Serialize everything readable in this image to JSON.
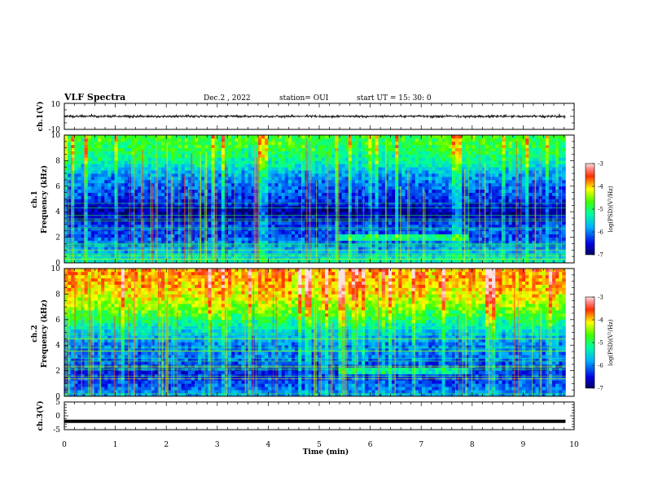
{
  "header": {
    "title": "VLF Spectra",
    "date": "Dec.2 , 2022",
    "station": "station= OUI",
    "start": "start UT = 15: 30: 0"
  },
  "colors": {
    "background": "#ffffff",
    "frame": "#000000",
    "spectrogram_low": "#0a0a5a",
    "spectrogram_high": "#d01010",
    "trace": "#000000"
  },
  "chart_data": [
    {
      "type": "line",
      "panel": "ch1-waveform",
      "ylabel": "ch.1(V)",
      "ylim": [
        -10,
        10
      ],
      "ytick_labels": [
        "10",
        "-10"
      ],
      "series": [
        {
          "name": "ch.1",
          "baseline": 0,
          "amplitude_range": [
            -1.5,
            1.5
          ]
        }
      ]
    },
    {
      "type": "heatmap",
      "panel": "ch1-spectrogram",
      "ylabel": "Frequency (kHz)",
      "ylabel_prefix": "ch.1",
      "ylim": [
        0,
        10
      ],
      "yticks": [
        0,
        2,
        4,
        6,
        8,
        10
      ],
      "ytick_labels": [
        "0",
        "2",
        "4",
        "6",
        "8",
        "10"
      ],
      "colorbar": {
        "label": "log(PSD)(V²/Hz)",
        "range": [
          -7,
          -3
        ],
        "ticks": [
          -3,
          -4,
          -5,
          -6,
          -7
        ],
        "tick_labels": [
          "-3",
          "-4",
          "-5",
          "-6",
          "-7"
        ]
      },
      "level_profile": [
        {
          "f": 0.0,
          "v": -5.3
        },
        {
          "f": 1.0,
          "v": -5.8
        },
        {
          "f": 2.0,
          "v": -6.2
        },
        {
          "f": 3.0,
          "v": -6.3
        },
        {
          "f": 4.0,
          "v": -6.8
        },
        {
          "f": 5.0,
          "v": -6.3
        },
        {
          "f": 6.0,
          "v": -6.1
        },
        {
          "f": 7.0,
          "v": -5.8
        },
        {
          "f": 8.0,
          "v": -5.2
        },
        {
          "f": 9.0,
          "v": -4.9
        },
        {
          "f": 10.0,
          "v": -4.8
        }
      ],
      "features": {
        "tone_band_khz": [
          1.7,
          2.2
        ],
        "tone_band_time_min": [
          5.4,
          7.9
        ]
      }
    },
    {
      "type": "heatmap",
      "panel": "ch2-spectrogram",
      "ylabel": "Frequency (kHz)",
      "ylabel_prefix": "ch.2",
      "ylim": [
        0,
        10
      ],
      "yticks": [
        0,
        2,
        4,
        6,
        8,
        10
      ],
      "ytick_labels": [
        "0",
        "2",
        "4",
        "6",
        "8",
        "10"
      ],
      "colorbar": {
        "label": "log(PSD)(V²/Hz)",
        "range": [
          -7,
          -3
        ],
        "ticks": [
          -3,
          -4,
          -5,
          -6,
          -7
        ],
        "tick_labels": [
          "-3",
          "-4",
          "-5",
          "-6",
          "-7"
        ]
      },
      "level_profile": [
        {
          "f": 0.0,
          "v": -5.8
        },
        {
          "f": 1.0,
          "v": -6.2
        },
        {
          "f": 2.0,
          "v": -6.4
        },
        {
          "f": 3.0,
          "v": -6.0
        },
        {
          "f": 4.0,
          "v": -6.0
        },
        {
          "f": 5.0,
          "v": -5.6
        },
        {
          "f": 6.0,
          "v": -5.0
        },
        {
          "f": 7.0,
          "v": -4.5
        },
        {
          "f": 8.0,
          "v": -4.1
        },
        {
          "f": 9.0,
          "v": -3.9
        },
        {
          "f": 10.0,
          "v": -3.8
        }
      ],
      "features": {
        "tone_band_khz": [
          1.8,
          2.2
        ],
        "tone_band_time_min": [
          5.4,
          7.9
        ]
      }
    },
    {
      "type": "line",
      "panel": "ch3-waveform",
      "ylabel": "ch.3(V)",
      "ylim": [
        -5,
        5
      ],
      "yticks": [
        -5,
        0,
        5
      ],
      "ytick_labels": [
        "-5",
        "0",
        "5"
      ],
      "series": [
        {
          "name": "ch.3",
          "baseline": -2
        }
      ]
    }
  ],
  "x_axis": {
    "label": "Time (min)",
    "range": [
      0,
      10
    ],
    "ticks": [
      0,
      1,
      2,
      3,
      4,
      5,
      6,
      7,
      8,
      9,
      10
    ],
    "tick_labels": [
      "0",
      "1",
      "2",
      "3",
      "4",
      "5",
      "6",
      "7",
      "8",
      "9",
      "10"
    ],
    "data_end": 9.83
  }
}
